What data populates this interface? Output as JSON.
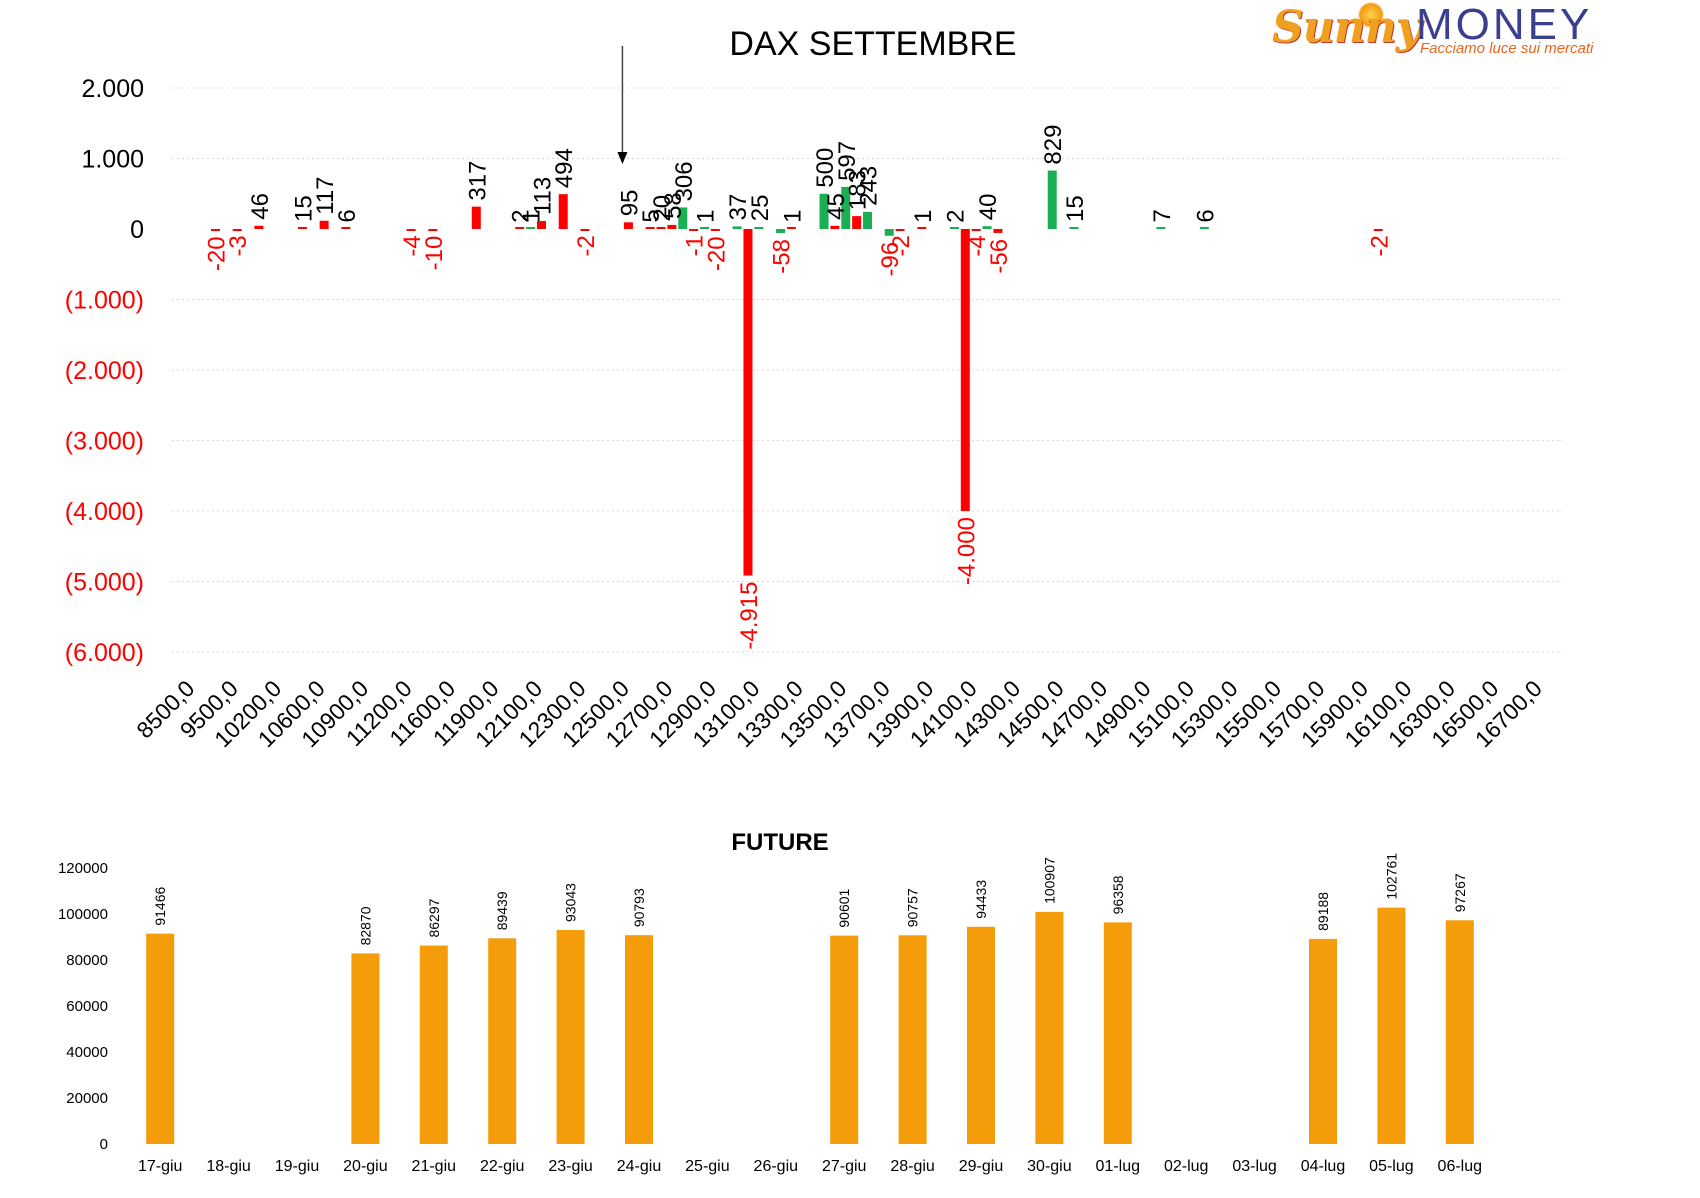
{
  "logo": {
    "brand_a": "Sunny",
    "brand_b": "MONEY",
    "tagline": "Facciamo luce sui mercati"
  },
  "colors": {
    "green": "#1aaf54",
    "red": "#ff0000",
    "orange": "#f59c0a",
    "grid": "#d9d9d9",
    "text": "#000000"
  },
  "chart_data": [
    {
      "type": "bar",
      "title": "DAX SETTEMBRE",
      "ylim": [
        -6000,
        2000
      ],
      "yticks": [
        {
          "value": 2000,
          "label": "2.000",
          "color": "#000000"
        },
        {
          "value": 1000,
          "label": "1.000",
          "color": "#000000"
        },
        {
          "value": 0,
          "label": "0",
          "color": "#000000"
        },
        {
          "value": -1000,
          "label": "(1.000)",
          "color": "#ff0000"
        },
        {
          "value": -2000,
          "label": "(2.000)",
          "color": "#ff0000"
        },
        {
          "value": -3000,
          "label": "(3.000)",
          "color": "#ff0000"
        },
        {
          "value": -4000,
          "label": "(4.000)",
          "color": "#ff0000"
        },
        {
          "value": -5000,
          "label": "(5.000)",
          "color": "#ff0000"
        },
        {
          "value": -6000,
          "label": "(6.000)",
          "color": "#ff0000"
        }
      ],
      "grid": true,
      "x_tick_labels": [
        "8500,0",
        "9500,0",
        "10200,0",
        "10600,0",
        "10900,0",
        "11200,0",
        "11600,0",
        "11900,0",
        "12100,0",
        "12300,0",
        "12500,0",
        "12700,0",
        "12900,0",
        "13100,0",
        "13300,0",
        "13500,0",
        "13700,0",
        "13900,0",
        "14100,0",
        "14300,0",
        "14500,0",
        "14700,0",
        "14900,0",
        "15100,0",
        "15300,0",
        "15500,0",
        "15700,0",
        "15900,0",
        "16100,0",
        "16300,0",
        "16500,0",
        "16700,0"
      ],
      "bars": [
        {
          "pos": 1.0,
          "value": -20,
          "color": "red",
          "label": "-20"
        },
        {
          "pos": 1.5,
          "value": -3,
          "color": "red",
          "label": "-3"
        },
        {
          "pos": 2.0,
          "value": 46,
          "color": "red",
          "label": "46"
        },
        {
          "pos": 3.0,
          "value": 15,
          "color": "red",
          "label": "15"
        },
        {
          "pos": 3.5,
          "value": 117,
          "color": "red",
          "label": "117"
        },
        {
          "pos": 4.0,
          "value": 6,
          "color": "red",
          "label": "6"
        },
        {
          "pos": 5.5,
          "value": -4,
          "color": "red",
          "label": "-4"
        },
        {
          "pos": 6.0,
          "value": -10,
          "color": "red",
          "label": "-10"
        },
        {
          "pos": 7.0,
          "value": 317,
          "color": "red",
          "label": "317"
        },
        {
          "pos": 8.0,
          "value": 2,
          "color": "red",
          "label": "2"
        },
        {
          "pos": 8.25,
          "value": 1,
          "color": "green",
          "label": "1"
        },
        {
          "pos": 8.5,
          "value": 113,
          "color": "red",
          "label": "113"
        },
        {
          "pos": 9.0,
          "value": 494,
          "color": "red",
          "label": "494"
        },
        {
          "pos": 9.5,
          "value": -2,
          "color": "red",
          "label": "-2"
        },
        {
          "pos": 10.5,
          "value": 95,
          "color": "red",
          "label": "95"
        },
        {
          "pos": 11.0,
          "value": 5,
          "color": "red",
          "label": "5"
        },
        {
          "pos": 11.25,
          "value": 20,
          "color": "red",
          "label": "20"
        },
        {
          "pos": 11.5,
          "value": 58,
          "color": "red",
          "label": "58"
        },
        {
          "pos": 11.75,
          "value": 306,
          "color": "green",
          "label": "306"
        },
        {
          "pos": 12.0,
          "value": -1,
          "color": "red",
          "label": "-1"
        },
        {
          "pos": 12.25,
          "value": 1,
          "color": "green",
          "label": "1"
        },
        {
          "pos": 12.5,
          "value": -20,
          "color": "red",
          "label": "-20"
        },
        {
          "pos": 13.0,
          "value": 37,
          "color": "green",
          "label": "37"
        },
        {
          "pos": 13.25,
          "value": -4915,
          "color": "red",
          "label": "-4.915"
        },
        {
          "pos": 13.5,
          "value": 25,
          "color": "green",
          "label": "25"
        },
        {
          "pos": 14.0,
          "value": -58,
          "color": "green",
          "label": "-58"
        },
        {
          "pos": 14.25,
          "value": 1,
          "color": "red",
          "label": "1"
        },
        {
          "pos": 15.0,
          "value": 500,
          "color": "green",
          "label": "500"
        },
        {
          "pos": 15.25,
          "value": 45,
          "color": "red",
          "label": "45"
        },
        {
          "pos": 15.5,
          "value": 597,
          "color": "green",
          "label": "597"
        },
        {
          "pos": 15.75,
          "value": 183,
          "color": "red",
          "label": "183"
        },
        {
          "pos": 16.0,
          "value": 243,
          "color": "green",
          "label": "243"
        },
        {
          "pos": 16.5,
          "value": -96,
          "color": "green",
          "label": "-96"
        },
        {
          "pos": 16.75,
          "value": -2,
          "color": "red",
          "label": "-2"
        },
        {
          "pos": 17.25,
          "value": 1,
          "color": "red",
          "label": "1"
        },
        {
          "pos": 18.0,
          "value": 2,
          "color": "green",
          "label": "2"
        },
        {
          "pos": 18.25,
          "value": -4000,
          "color": "red",
          "label": "-4.000"
        },
        {
          "pos": 18.5,
          "value": -4,
          "color": "red",
          "label": "-4"
        },
        {
          "pos": 18.75,
          "value": 40,
          "color": "green",
          "label": "40"
        },
        {
          "pos": 19.0,
          "value": -56,
          "color": "red",
          "label": "-56"
        },
        {
          "pos": 20.25,
          "value": 829,
          "color": "green",
          "label": "829"
        },
        {
          "pos": 20.75,
          "value": 15,
          "color": "green",
          "label": "15"
        },
        {
          "pos": 22.75,
          "value": 7,
          "color": "green",
          "label": "7"
        },
        {
          "pos": 23.75,
          "value": 6,
          "color": "green",
          "label": "6"
        },
        {
          "pos": 27.75,
          "value": -2,
          "color": "red",
          "label": "-2"
        }
      ],
      "arrow_at_pos": 10.5
    },
    {
      "type": "bar",
      "title": "FUTURE",
      "ylim": [
        0,
        120000
      ],
      "yticks": [
        0,
        20000,
        40000,
        60000,
        80000,
        100000,
        120000
      ],
      "categories": [
        "17-giu",
        "18-giu",
        "19-giu",
        "20-giu",
        "21-giu",
        "22-giu",
        "23-giu",
        "24-giu",
        "25-giu",
        "26-giu",
        "27-giu",
        "28-giu",
        "29-giu",
        "30-giu",
        "01-lug",
        "02-lug",
        "03-lug",
        "04-lug",
        "05-lug",
        "06-lug"
      ],
      "values": [
        91466,
        null,
        null,
        82870,
        86297,
        89439,
        93043,
        90793,
        null,
        null,
        90601,
        90757,
        94433,
        100907,
        96358,
        null,
        null,
        89188,
        102761,
        97267
      ],
      "color": "#f59c0a"
    }
  ]
}
